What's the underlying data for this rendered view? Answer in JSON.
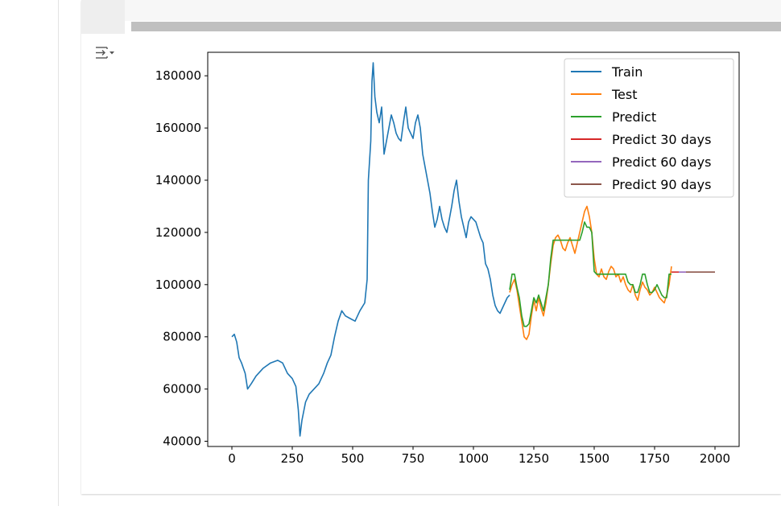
{
  "chart_data": {
    "type": "line",
    "title": "",
    "xlabel": "",
    "ylabel": "",
    "xlim": [
      -100,
      2100
    ],
    "ylim": [
      38000,
      189000
    ],
    "x_ticks": [
      0,
      250,
      500,
      750,
      1000,
      1250,
      1500,
      1750,
      2000
    ],
    "y_ticks": [
      40000,
      60000,
      80000,
      100000,
      120000,
      140000,
      160000,
      180000
    ],
    "x_tick_labels": [
      "0",
      "250",
      "500",
      "750",
      "1000",
      "1250",
      "1500",
      "1750",
      "2000"
    ],
    "y_tick_labels": [
      "40000",
      "60000",
      "80000",
      "100000",
      "120000",
      "140000",
      "160000",
      "180000"
    ],
    "grid": false,
    "legend_position": "top-right",
    "series": [
      {
        "name": "Train",
        "color": "#1f77b4",
        "x": [
          0,
          10,
          20,
          30,
          40,
          55,
          65,
          80,
          100,
          130,
          160,
          190,
          210,
          230,
          250,
          265,
          275,
          282,
          290,
          305,
          320,
          340,
          360,
          380,
          395,
          410,
          425,
          440,
          455,
          470,
          490,
          510,
          530,
          550,
          560,
          565,
          575,
          580,
          585,
          592,
          600,
          610,
          620,
          630,
          640,
          650,
          660,
          670,
          680,
          690,
          700,
          710,
          720,
          730,
          740,
          750,
          760,
          770,
          780,
          790,
          800,
          810,
          820,
          830,
          840,
          850,
          860,
          870,
          880,
          890,
          900,
          910,
          920,
          930,
          940,
          950,
          960,
          970,
          980,
          990,
          1000,
          1010,
          1020,
          1030,
          1040,
          1050,
          1060,
          1070,
          1080,
          1090,
          1100,
          1110,
          1120,
          1130,
          1140,
          1150
        ],
        "y": [
          80000,
          81000,
          78000,
          72000,
          70000,
          66000,
          60000,
          62000,
          65000,
          68000,
          70000,
          71000,
          70000,
          66000,
          64000,
          61000,
          52000,
          42000,
          48000,
          55000,
          58000,
          60000,
          62000,
          66000,
          70000,
          73000,
          80000,
          86000,
          90000,
          88000,
          87000,
          86000,
          90000,
          93000,
          102000,
          140000,
          155000,
          178000,
          185000,
          172000,
          166000,
          162000,
          168000,
          150000,
          155000,
          160000,
          165000,
          162000,
          158000,
          156000,
          155000,
          162000,
          168000,
          160000,
          158000,
          156000,
          162000,
          165000,
          160000,
          150000,
          145000,
          140000,
          135000,
          128000,
          122000,
          125000,
          130000,
          125000,
          122000,
          120000,
          125000,
          130000,
          136000,
          140000,
          132000,
          126000,
          122000,
          118000,
          124000,
          126000,
          125000,
          124000,
          121000,
          118000,
          116000,
          108000,
          106000,
          102000,
          96000,
          92000,
          90000,
          89000,
          91000,
          93000,
          95000,
          96000
        ]
      },
      {
        "name": "Test",
        "color": "#ff7f0e",
        "x": [
          1150,
          1160,
          1170,
          1180,
          1190,
          1200,
          1210,
          1220,
          1230,
          1240,
          1250,
          1260,
          1270,
          1280,
          1290,
          1300,
          1310,
          1320,
          1330,
          1340,
          1350,
          1360,
          1370,
          1380,
          1390,
          1400,
          1410,
          1420,
          1430,
          1440,
          1450,
          1460,
          1470,
          1480,
          1490,
          1500,
          1510,
          1520,
          1530,
          1540,
          1550,
          1560,
          1570,
          1580,
          1590,
          1600,
          1610,
          1620,
          1630,
          1640,
          1650,
          1660,
          1670,
          1680,
          1690,
          1700,
          1710,
          1720,
          1730,
          1740,
          1750,
          1760,
          1770,
          1780,
          1790,
          1800,
          1810,
          1820
        ],
        "y": [
          97000,
          100000,
          102000,
          98000,
          92000,
          86000,
          80000,
          79000,
          81000,
          88000,
          94000,
          90000,
          95000,
          91000,
          88000,
          93000,
          100000,
          108000,
          115000,
          118000,
          119000,
          117000,
          114000,
          113000,
          116000,
          118000,
          115000,
          112000,
          116000,
          120000,
          124000,
          128000,
          130000,
          126000,
          120000,
          110000,
          104000,
          103000,
          106000,
          103000,
          102000,
          105000,
          107000,
          106000,
          103000,
          104000,
          101000,
          103000,
          100000,
          98000,
          97000,
          100000,
          96000,
          94000,
          98000,
          101000,
          99000,
          98000,
          96000,
          97000,
          99000,
          97000,
          95000,
          94000,
          93000,
          96000,
          100000,
          107000
        ]
      },
      {
        "name": "Predict",
        "color": "#2ca02c",
        "x": [
          1150,
          1160,
          1170,
          1180,
          1190,
          1200,
          1210,
          1220,
          1230,
          1240,
          1250,
          1260,
          1270,
          1280,
          1290,
          1300,
          1310,
          1320,
          1330,
          1340,
          1350,
          1360,
          1370,
          1380,
          1390,
          1400,
          1410,
          1420,
          1430,
          1440,
          1450,
          1460,
          1470,
          1480,
          1490,
          1500,
          1510,
          1520,
          1530,
          1540,
          1550,
          1560,
          1570,
          1580,
          1590,
          1600,
          1610,
          1620,
          1630,
          1640,
          1650,
          1660,
          1670,
          1680,
          1690,
          1700,
          1710,
          1720,
          1730,
          1740,
          1750,
          1760,
          1770,
          1780,
          1790,
          1800,
          1810,
          1820
        ],
        "y": [
          98000,
          104000,
          104000,
          99000,
          95000,
          88000,
          84000,
          84000,
          85000,
          90000,
          95000,
          93000,
          96000,
          93000,
          90000,
          95000,
          100000,
          110000,
          117000,
          117000,
          117000,
          117000,
          117000,
          117000,
          117000,
          117000,
          117000,
          117000,
          117000,
          117000,
          120000,
          124000,
          122000,
          122000,
          120000,
          105000,
          104000,
          104000,
          104000,
          104000,
          104000,
          104000,
          104000,
          104000,
          104000,
          104000,
          104000,
          104000,
          104000,
          101000,
          100000,
          100000,
          97000,
          97000,
          100000,
          104000,
          104000,
          100000,
          97000,
          97000,
          98000,
          100000,
          98000,
          96000,
          95000,
          95000,
          104000,
          104000
        ]
      },
      {
        "name": "Predict 30 days",
        "color": "#d62728",
        "x": [
          1820,
          1850
        ],
        "y": [
          104800,
          104800
        ]
      },
      {
        "name": "Predict 60 days",
        "color": "#9467bd",
        "x": [
          1850,
          1880
        ],
        "y": [
          104800,
          104800
        ]
      },
      {
        "name": "Predict 90 days",
        "color": "#8c564b",
        "x": [
          1880,
          2000
        ],
        "y": [
          104800,
          104800
        ]
      }
    ]
  },
  "output_toggle_icon": "output-collapse-icon"
}
